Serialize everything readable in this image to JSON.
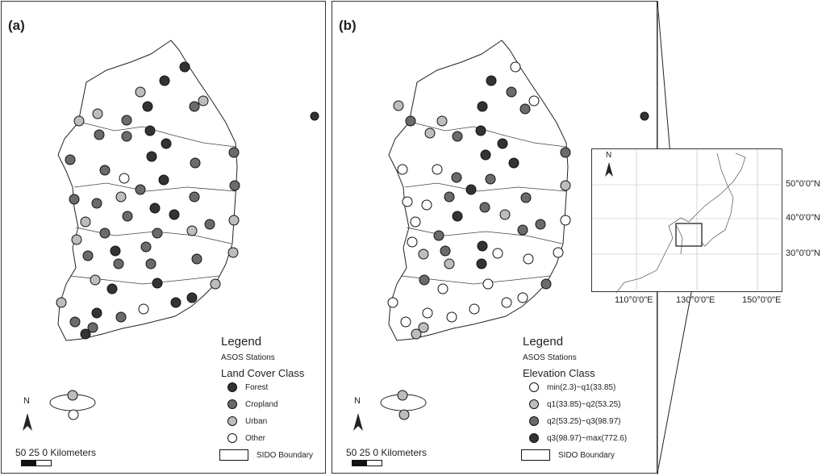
{
  "panel_a": {
    "tag": "(a)",
    "legend": {
      "title": "Legend",
      "stations": "ASOS Stations",
      "class_title": "Land Cover Class",
      "items": [
        {
          "label": "Forest",
          "color": "#333333"
        },
        {
          "label": "Cropland",
          "color": "#6b6b6b"
        },
        {
          "label": "Urban",
          "color": "#bdbdbd"
        },
        {
          "label": "Other",
          "color": "#ffffff"
        }
      ],
      "boundary": "SIDO Boundary"
    },
    "scale": {
      "ticks": "50 25    0 Kilometers"
    },
    "north": "N"
  },
  "panel_b": {
    "tag": "(b)",
    "legend": {
      "title": "Legend",
      "stations": "ASOS Stations",
      "class_title": "Elevation Class",
      "items": [
        {
          "label": "min(2.3)~q1(33.85)",
          "color": "#ffffff"
        },
        {
          "label": "q1(33.85)~q2(53.25)",
          "color": "#bdbdbd"
        },
        {
          "label": "q2(53.25)~q3(98.97)",
          "color": "#6b6b6b"
        },
        {
          "label": "q3(98.97)~max(772.6)",
          "color": "#333333"
        }
      ],
      "boundary": "SIDO Boundary"
    },
    "scale": {
      "ticks": "50 25    0 Kilometers"
    },
    "north": "N"
  },
  "inset": {
    "north": "N",
    "lat_labels": [
      "50°0'0\"N",
      "40°0'0\"N",
      "30°0'0\"N"
    ],
    "lon_labels": [
      "110°0'0\"E",
      "130°0'0\"E",
      "150°0'0\"E"
    ]
  }
}
